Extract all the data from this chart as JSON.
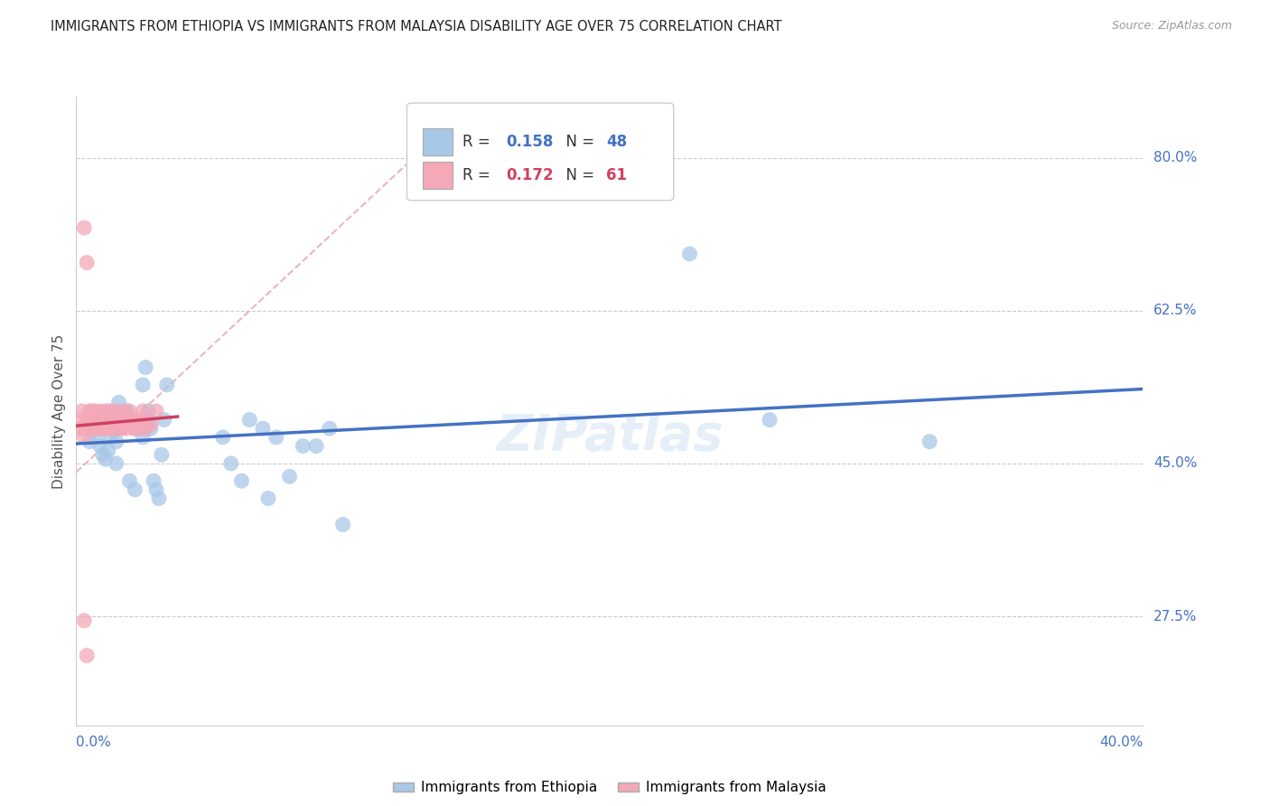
{
  "title": "IMMIGRANTS FROM ETHIOPIA VS IMMIGRANTS FROM MALAYSIA DISABILITY AGE OVER 75 CORRELATION CHART",
  "source": "Source: ZipAtlas.com",
  "ylabel": "Disability Age Over 75",
  "xmin": 0.0,
  "xmax": 0.4,
  "ymin": 0.15,
  "ymax": 0.87,
  "yticks": [
    0.8,
    0.625,
    0.45,
    0.275
  ],
  "ytick_labels": [
    "80.0%",
    "62.5%",
    "45.0%",
    "27.5%"
  ],
  "xtick_left": "0.0%",
  "xtick_right": "40.0%",
  "r_ethiopia": 0.158,
  "n_ethiopia": 48,
  "r_malaysia": 0.172,
  "n_malaysia": 61,
  "color_ethiopia_fill": "#a8c8e8",
  "color_malaysia_fill": "#f4a8b8",
  "color_ethiopia_line": "#4472c4",
  "color_malaysia_line": "#d04060",
  "color_diagonal": "#e8a8b8",
  "background": "#ffffff",
  "grid_color": "#cccccc",
  "title_color": "#222222",
  "tick_color": "#4472c4",
  "source_color": "#999999",
  "ethiopia_x": [
    0.005,
    0.007,
    0.008,
    0.009,
    0.01,
    0.01,
    0.011,
    0.012,
    0.012,
    0.013,
    0.014,
    0.015,
    0.015,
    0.015,
    0.016,
    0.017,
    0.018,
    0.019,
    0.02,
    0.022,
    0.022,
    0.025,
    0.025,
    0.026,
    0.027,
    0.027,
    0.028,
    0.029,
    0.03,
    0.031,
    0.032,
    0.033,
    0.034,
    0.055,
    0.058,
    0.062,
    0.065,
    0.07,
    0.072,
    0.075,
    0.08,
    0.085,
    0.09,
    0.095,
    0.1,
    0.23,
    0.26,
    0.32
  ],
  "ethiopia_y": [
    0.475,
    0.49,
    0.48,
    0.47,
    0.5,
    0.46,
    0.455,
    0.465,
    0.51,
    0.48,
    0.5,
    0.475,
    0.495,
    0.45,
    0.52,
    0.49,
    0.5,
    0.51,
    0.43,
    0.49,
    0.42,
    0.54,
    0.48,
    0.56,
    0.5,
    0.51,
    0.49,
    0.43,
    0.42,
    0.41,
    0.46,
    0.5,
    0.54,
    0.48,
    0.45,
    0.43,
    0.5,
    0.49,
    0.41,
    0.48,
    0.435,
    0.47,
    0.47,
    0.49,
    0.38,
    0.69,
    0.5,
    0.475
  ],
  "malaysia_x": [
    0.001,
    0.002,
    0.002,
    0.003,
    0.003,
    0.004,
    0.004,
    0.005,
    0.005,
    0.005,
    0.006,
    0.006,
    0.006,
    0.007,
    0.007,
    0.007,
    0.007,
    0.008,
    0.008,
    0.008,
    0.009,
    0.009,
    0.01,
    0.01,
    0.01,
    0.01,
    0.011,
    0.011,
    0.011,
    0.012,
    0.012,
    0.013,
    0.013,
    0.013,
    0.014,
    0.014,
    0.015,
    0.015,
    0.016,
    0.016,
    0.017,
    0.017,
    0.018,
    0.018,
    0.019,
    0.019,
    0.02,
    0.02,
    0.022,
    0.022,
    0.023,
    0.024,
    0.025,
    0.025,
    0.026,
    0.028,
    0.03,
    0.003,
    0.004,
    0.003,
    0.004
  ],
  "malaysia_y": [
    0.49,
    0.5,
    0.51,
    0.49,
    0.48,
    0.5,
    0.495,
    0.505,
    0.51,
    0.495,
    0.49,
    0.495,
    0.51,
    0.49,
    0.495,
    0.5,
    0.51,
    0.49,
    0.505,
    0.495,
    0.49,
    0.51,
    0.49,
    0.495,
    0.5,
    0.505,
    0.49,
    0.5,
    0.51,
    0.49,
    0.495,
    0.49,
    0.5,
    0.51,
    0.49,
    0.495,
    0.5,
    0.51,
    0.49,
    0.5,
    0.495,
    0.49,
    0.51,
    0.5,
    0.49,
    0.495,
    0.5,
    0.51,
    0.49,
    0.5,
    0.495,
    0.49,
    0.51,
    0.5,
    0.49,
    0.495,
    0.51,
    0.72,
    0.68,
    0.27,
    0.23
  ]
}
